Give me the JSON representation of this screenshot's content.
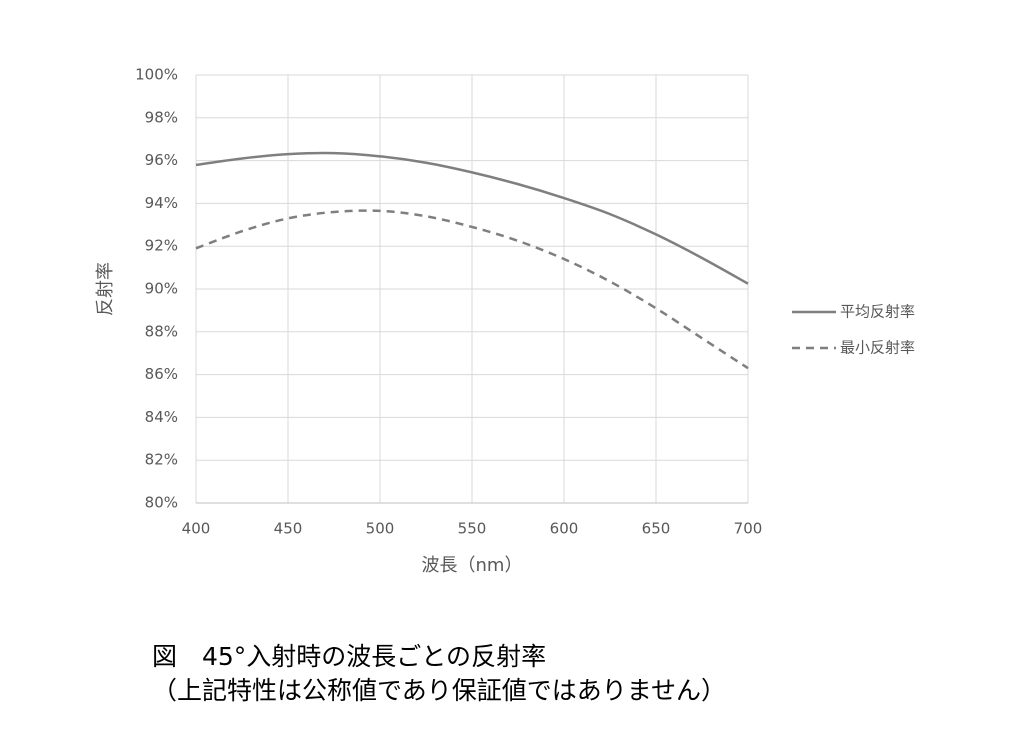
{
  "chart_data": {
    "type": "line",
    "x_label": "波長（nm）",
    "y_label": "反射率",
    "x": [
      400,
      425,
      450,
      475,
      500,
      525,
      550,
      575,
      600,
      625,
      650,
      675,
      700
    ],
    "series": [
      {
        "name": "平均反射率",
        "color": "#7f7f7f",
        "line_style": "solid",
        "values": [
          95.8,
          96.1,
          96.3,
          96.35,
          96.2,
          95.9,
          95.45,
          94.9,
          94.25,
          93.5,
          92.55,
          91.45,
          90.25
        ]
      },
      {
        "name": "最小反射率",
        "color": "#7f7f7f",
        "line_style": "dashed",
        "values": [
          91.9,
          92.7,
          93.3,
          93.6,
          93.65,
          93.4,
          92.9,
          92.25,
          91.4,
          90.35,
          89.1,
          87.7,
          86.3
        ]
      }
    ],
    "xlim": [
      400,
      700
    ],
    "xticks": [
      400,
      450,
      500,
      550,
      600,
      650,
      700
    ],
    "ylim": [
      80,
      100
    ],
    "yticks": [
      {
        "value": 80,
        "label": "80%"
      },
      {
        "value": 82,
        "label": "82%"
      },
      {
        "value": 84,
        "label": "84%"
      },
      {
        "value": 86,
        "label": "86%"
      },
      {
        "value": 88,
        "label": "88%"
      },
      {
        "value": 90,
        "label": "90%"
      },
      {
        "value": 92,
        "label": "92%"
      },
      {
        "value": 94,
        "label": "94%"
      },
      {
        "value": 96,
        "label": "96%"
      },
      {
        "value": 98,
        "label": "98%"
      },
      {
        "value": 100,
        "label": "100%"
      }
    ],
    "grid": true,
    "legend": "right",
    "caption": [
      "図　45°入射時の波長ごとの反射率",
      "（上記特性は公称値であり保証値ではありません）"
    ]
  }
}
